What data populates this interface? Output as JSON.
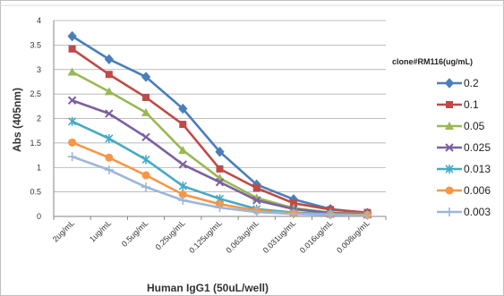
{
  "chart_data": {
    "type": "line",
    "title": "",
    "xlabel": "Human IgG1 (50uL/well)",
    "ylabel": "Abs (405nm)",
    "ylim": [
      0,
      4
    ],
    "yticks": [
      "0",
      "0.5",
      "1",
      "1.5",
      "2",
      "2.5",
      "3",
      "3.5",
      "4"
    ],
    "grid": true,
    "legend_position": "right",
    "legend_title": "clone#RM116(ug/mL)",
    "categories": [
      "2ug/mL",
      "1ug/mL",
      "0.5ug/mL",
      "0.25ug/mL",
      "0.125ug/mL",
      "0.063ug/mL",
      "0.031ug/mL",
      "0.016ug/mL",
      "0.008ug/mL"
    ],
    "series": [
      {
        "name": "0.2",
        "color": "#4a7ebb",
        "marker": "diamond",
        "values": [
          3.68,
          3.21,
          2.85,
          2.2,
          1.32,
          0.65,
          0.35,
          0.15,
          0.07
        ]
      },
      {
        "name": "0.1",
        "color": "#be4b48",
        "marker": "square",
        "values": [
          3.42,
          2.9,
          2.43,
          1.88,
          0.97,
          0.58,
          0.27,
          0.14,
          0.08
        ]
      },
      {
        "name": "0.05",
        "color": "#98b954",
        "marker": "triangle",
        "values": [
          2.95,
          2.55,
          2.12,
          1.35,
          0.78,
          0.38,
          0.17,
          0.08,
          0.05
        ]
      },
      {
        "name": "0.025",
        "color": "#7d60a0",
        "marker": "x",
        "values": [
          2.37,
          2.1,
          1.62,
          1.06,
          0.7,
          0.33,
          0.15,
          0.07,
          0.04
        ]
      },
      {
        "name": "0.013",
        "color": "#46aac5",
        "marker": "star",
        "values": [
          1.94,
          1.59,
          1.16,
          0.62,
          0.36,
          0.15,
          0.08,
          0.05,
          0.03
        ]
      },
      {
        "name": "0.006",
        "color": "#f79646",
        "marker": "circle",
        "values": [
          1.51,
          1.2,
          0.84,
          0.45,
          0.25,
          0.12,
          0.06,
          0.04,
          0.03
        ]
      },
      {
        "name": "0.003",
        "color": "#9bb7d9",
        "marker": "plus",
        "values": [
          1.22,
          0.95,
          0.6,
          0.33,
          0.18,
          0.09,
          0.05,
          0.03,
          0.02
        ]
      }
    ]
  }
}
